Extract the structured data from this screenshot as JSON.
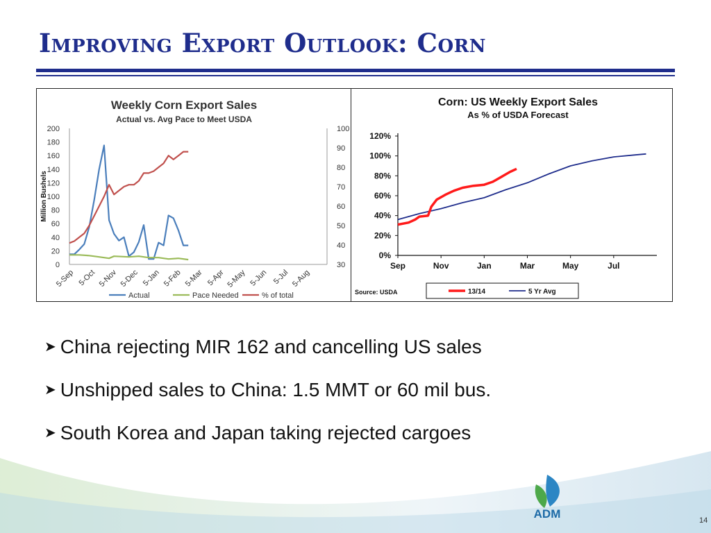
{
  "slide": {
    "title": "Improving Export Outlook: Corn",
    "page_number": "14",
    "bullets": [
      "China rejecting MIR 162 and cancelling US sales",
      "Unshipped sales to China: 1.5 MMT or 60 mil bus.",
      "South Korea and Japan taking rejected cargoes"
    ],
    "logo_text": "ADM",
    "colors": {
      "title": "#1f2d8c",
      "rule": "#1f2d8c"
    }
  },
  "chart_data": [
    {
      "type": "line",
      "title": "Weekly Corn Export Sales",
      "subtitle": "Actual vs. Avg Pace to Meet USDA",
      "ylabel": "Million Bushels",
      "ylim": [
        0,
        200
      ],
      "y2lim": [
        30,
        100
      ],
      "yticks": [
        "0",
        "20",
        "40",
        "60",
        "80",
        "100",
        "120",
        "140",
        "160",
        "180",
        "200"
      ],
      "y2ticks": [
        "30",
        "40",
        "50",
        "60",
        "70",
        "80",
        "90",
        "100"
      ],
      "xticks": [
        "5-Sep",
        "5-Oct",
        "5-Nov",
        "5-Dec",
        "5-Jan",
        "5-Feb",
        "5-Mar",
        "5-Apr",
        "5-May",
        "5-Jun",
        "5-Jul",
        "5-Aug"
      ],
      "xrange": [
        0,
        52
      ],
      "legend_position": "bottom",
      "series": [
        {
          "name": "Actual",
          "axis": "left",
          "color": "#4a7ebb",
          "x": [
            0,
            1,
            2,
            3,
            4,
            5,
            6,
            7,
            8,
            9,
            10,
            11,
            12,
            13,
            14,
            15,
            16,
            17,
            18,
            19,
            20,
            21,
            22,
            23,
            24
          ],
          "values": [
            15,
            15,
            22,
            30,
            55,
            95,
            140,
            175,
            65,
            45,
            35,
            40,
            12,
            18,
            33,
            58,
            8,
            8,
            32,
            28,
            72,
            68,
            50,
            28,
            28
          ]
        },
        {
          "name": "Pace Needed",
          "axis": "left",
          "color": "#9bbb59",
          "x": [
            0,
            2,
            4,
            6,
            8,
            9,
            12,
            14,
            16,
            18,
            20,
            22,
            24
          ],
          "values": [
            14,
            14,
            13,
            11,
            9,
            12,
            11,
            12,
            10,
            10,
            8,
            9,
            7
          ]
        },
        {
          "name": "% of total",
          "axis": "right",
          "color": "#c0504d",
          "x": [
            0,
            1,
            2,
            3,
            4,
            5,
            6,
            7,
            8,
            9,
            10,
            11,
            12,
            13,
            14,
            15,
            16,
            17,
            18,
            19,
            20,
            21,
            22,
            23,
            24
          ],
          "values": [
            41,
            42,
            44,
            46,
            50,
            55,
            60,
            65,
            71,
            66,
            68,
            70,
            71,
            71,
            73,
            77,
            77,
            78,
            80,
            82,
            86,
            84,
            86,
            88,
            88
          ]
        }
      ]
    },
    {
      "type": "line",
      "title": "Corn: US Weekly Export Sales",
      "subtitle": "As % of USDA Forecast",
      "ylim": [
        0,
        120
      ],
      "yticks": [
        "0%",
        "20%",
        "40%",
        "60%",
        "80%",
        "100%",
        "120%"
      ],
      "xticks": [
        "Sep",
        "Nov",
        "Jan",
        "Mar",
        "May",
        "Jul"
      ],
      "xrange": [
        0,
        12
      ],
      "source": "Source: USDA",
      "legend_position": "bottom",
      "series": [
        {
          "name": "13/14",
          "color": "#ff1a1a",
          "x": [
            0,
            0.5,
            0.8,
            1.0,
            1.4,
            1.55,
            1.8,
            2.2,
            2.6,
            3.0,
            3.5,
            4.0,
            4.4,
            4.8,
            5.2,
            5.5
          ],
          "values": [
            31,
            33,
            36,
            39,
            40,
            49,
            56,
            61,
            65,
            68,
            70,
            71,
            74,
            79,
            84,
            87
          ]
        },
        {
          "name": "5 Yr Avg",
          "color": "#1f2d8c",
          "x": [
            0,
            1,
            2,
            3,
            4,
            5,
            6,
            7,
            8,
            9,
            10,
            11,
            11.5
          ],
          "values": [
            36,
            42,
            47,
            53,
            58,
            66,
            73,
            82,
            90,
            95,
            99,
            101,
            102
          ]
        }
      ]
    }
  ]
}
